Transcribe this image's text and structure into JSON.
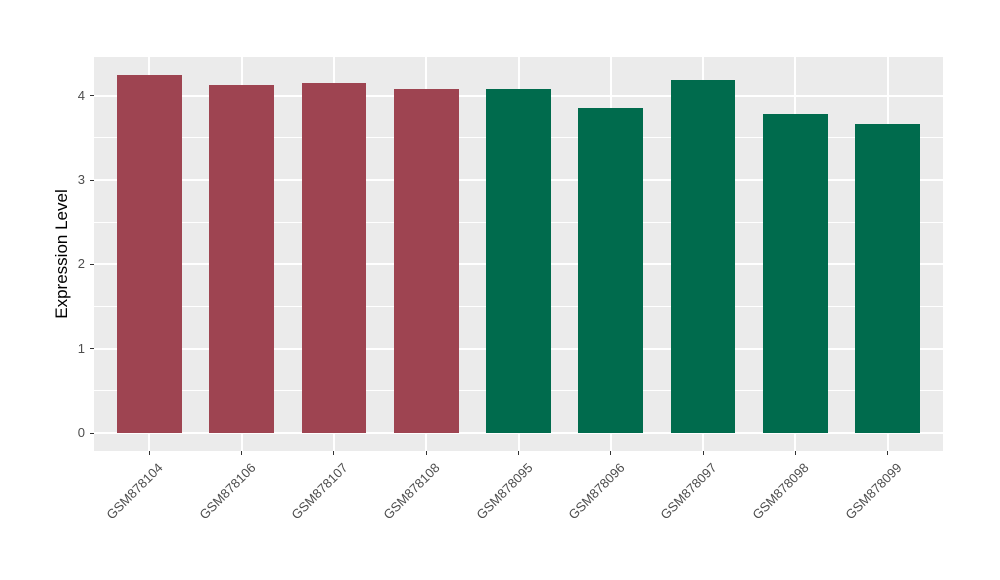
{
  "chart_data": {
    "type": "bar",
    "title": "",
    "categories": [
      "GSM878104",
      "GSM878106",
      "GSM878107",
      "GSM878108",
      "GSM878095",
      "GSM878096",
      "GSM878097",
      "GSM878098",
      "GSM878099"
    ],
    "values": [
      4.24,
      4.13,
      4.15,
      4.08,
      4.08,
      3.85,
      4.19,
      3.78,
      3.66
    ],
    "bar_colors": [
      "#9E4451",
      "#9E4451",
      "#9E4451",
      "#9E4451",
      "#006B4D",
      "#006B4D",
      "#006B4D",
      "#006B4D",
      "#006B4D"
    ],
    "group_colors": {
      "red_group": "#9E4451",
      "green_group": "#006B4D"
    },
    "xlabel": "",
    "ylabel": "Expression Level",
    "yticks": [
      "0",
      "1",
      "2",
      "3",
      "4"
    ],
    "ytick_values": [
      0,
      1,
      2,
      3,
      4
    ],
    "yminor_values": [
      0.5,
      1.5,
      2.5,
      3.5
    ],
    "ylim": [
      -0.212,
      4.459
    ],
    "grid": true,
    "legend_position": "none",
    "panel_bg": "#EBEBEB",
    "grid_color": "#FFFFFF",
    "tick_color": "#333333",
    "tick_label_color": "#4D4D4D",
    "axis_title_color": "#000000"
  }
}
